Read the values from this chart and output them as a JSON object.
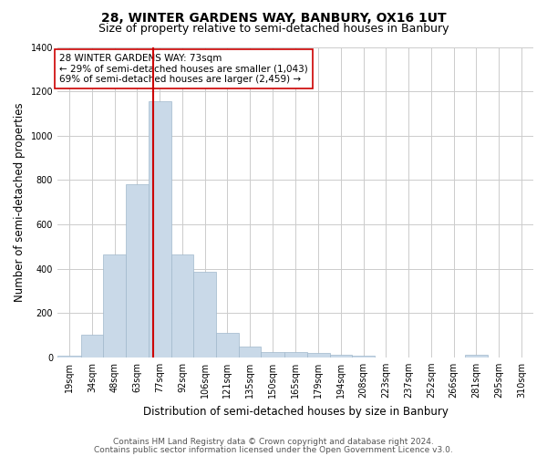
{
  "title": "28, WINTER GARDENS WAY, BANBURY, OX16 1UT",
  "subtitle": "Size of property relative to semi-detached houses in Banbury",
  "xlabel": "Distribution of semi-detached houses by size in Banbury",
  "ylabel": "Number of semi-detached properties",
  "footer_line1": "Contains HM Land Registry data © Crown copyright and database right 2024.",
  "footer_line2": "Contains public sector information licensed under the Open Government Licence v3.0.",
  "property_label": "28 WINTER GARDENS WAY: 73sqm",
  "annotation_smaller": "← 29% of semi-detached houses are smaller (1,043)",
  "annotation_larger": "69% of semi-detached houses are larger (2,459) →",
  "bar_labels": [
    "19sqm",
    "34sqm",
    "48sqm",
    "63sqm",
    "77sqm",
    "92sqm",
    "106sqm",
    "121sqm",
    "135sqm",
    "150sqm",
    "165sqm",
    "179sqm",
    "194sqm",
    "208sqm",
    "223sqm",
    "237sqm",
    "252sqm",
    "266sqm",
    "281sqm",
    "295sqm",
    "310sqm"
  ],
  "bar_values": [
    8,
    100,
    465,
    780,
    1155,
    465,
    385,
    110,
    48,
    25,
    22,
    18,
    12,
    8,
    0,
    0,
    0,
    0,
    12,
    0,
    0
  ],
  "bin_edges": [
    11.5,
    26.5,
    41.0,
    55.5,
    70.0,
    84.5,
    99.0,
    113.5,
    128.0,
    142.5,
    157.5,
    172.0,
    186.5,
    201.0,
    215.5,
    230.0,
    244.5,
    259.0,
    273.5,
    288.0,
    302.5,
    317.5
  ],
  "bar_color": "#c9d9e8",
  "bar_edgecolor": "#a0b8cc",
  "vline_x": 73,
  "vline_color": "#cc0000",
  "annotation_box_edgecolor": "#cc0000",
  "annotation_box_facecolor": "#ffffff",
  "ylim": [
    0,
    1400
  ],
  "yticks": [
    0,
    200,
    400,
    600,
    800,
    1000,
    1200,
    1400
  ],
  "grid_color": "#cccccc",
  "background_color": "#ffffff",
  "title_fontsize": 10,
  "subtitle_fontsize": 9,
  "axis_label_fontsize": 8.5,
  "tick_fontsize": 7,
  "annotation_fontsize": 7.5,
  "footer_fontsize": 6.5
}
